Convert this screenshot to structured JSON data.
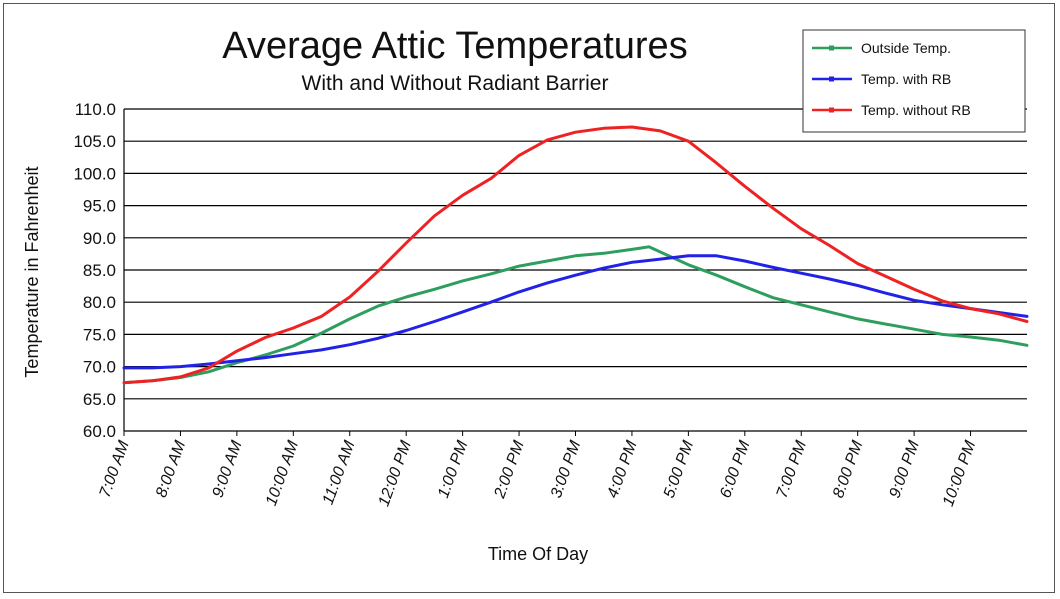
{
  "chart_data": {
    "type": "line",
    "title": "Average Attic Temperatures",
    "subtitle": "With and Without Radiant Barrier",
    "xlabel": "Time Of Day",
    "ylabel": "Temperature in Fahrenheit",
    "ylim": [
      60,
      110
    ],
    "yticks": [
      "60.0",
      "65.0",
      "70.0",
      "75.0",
      "80.0",
      "85.0",
      "90.0",
      "95.0",
      "100.0",
      "105.0",
      "110.0"
    ],
    "xlim": [
      7,
      23
    ],
    "xticks": [
      {
        "label": "7:00 AM",
        "x": 7
      },
      {
        "label": "8:00 AM",
        "x": 8
      },
      {
        "label": "9:00 AM",
        "x": 9
      },
      {
        "label": "10:00 AM",
        "x": 10
      },
      {
        "label": "11:00 AM",
        "x": 11
      },
      {
        "label": "12:00 PM",
        "x": 12
      },
      {
        "label": "1:00 PM",
        "x": 13
      },
      {
        "label": "2:00 PM",
        "x": 14
      },
      {
        "label": "3:00 PM",
        "x": 15
      },
      {
        "label": "4:00 PM",
        "x": 16
      },
      {
        "label": "5:00 PM",
        "x": 17
      },
      {
        "label": "6:00 PM",
        "x": 18
      },
      {
        "label": "7:00 PM",
        "x": 19
      },
      {
        "label": "8:00 PM",
        "x": 20
      },
      {
        "label": "9:00 PM",
        "x": 21
      },
      {
        "label": "10:00 PM",
        "x": 22
      }
    ],
    "grid": "horizontal",
    "legend_position": "top-right",
    "series": [
      {
        "name": "Outside Temp.",
        "color": "#2e9e5e",
        "x": [
          7,
          7.5,
          8,
          8.5,
          9,
          9.5,
          10,
          10.5,
          11,
          11.5,
          12,
          12.5,
          13,
          13.5,
          14,
          14.5,
          15,
          15.5,
          16,
          16.3,
          16.6,
          17,
          17.5,
          18,
          18.5,
          19,
          19.5,
          20,
          20.5,
          21,
          21.5,
          22,
          22.5,
          23
        ],
        "y": [
          67.5,
          67.8,
          68.3,
          69.2,
          70.6,
          71.8,
          73.2,
          75.2,
          77.4,
          79.4,
          80.8,
          82.0,
          83.3,
          84.4,
          85.6,
          86.4,
          87.2,
          87.6,
          88.2,
          88.6,
          87.4,
          85.8,
          84.2,
          82.4,
          80.7,
          79.6,
          78.5,
          77.4,
          76.6,
          75.8,
          75.0,
          74.6,
          74.1,
          73.3
        ]
      },
      {
        "name": "Temp. with RB",
        "color": "#2222e6",
        "x": [
          7,
          7.5,
          8,
          8.5,
          9,
          9.5,
          10,
          10.5,
          11,
          11.5,
          12,
          12.5,
          13,
          13.5,
          14,
          14.5,
          15,
          15.5,
          16,
          16.5,
          17,
          17.5,
          18,
          18.5,
          19,
          19.5,
          20,
          20.5,
          21,
          21.5,
          22,
          22.5,
          23
        ],
        "y": [
          69.8,
          69.8,
          70.0,
          70.4,
          70.9,
          71.4,
          72.0,
          72.6,
          73.4,
          74.4,
          75.6,
          77.0,
          78.5,
          80.0,
          81.6,
          83.0,
          84.2,
          85.3,
          86.2,
          86.7,
          87.2,
          87.2,
          86.4,
          85.4,
          84.5,
          83.6,
          82.6,
          81.4,
          80.3,
          79.6,
          79.0,
          78.4,
          77.8
        ]
      },
      {
        "name": "Temp. without RB",
        "color": "#ee2222",
        "x": [
          7,
          7.5,
          8,
          8.5,
          9,
          9.5,
          10,
          10.5,
          11,
          11.5,
          12,
          12.5,
          13,
          13.5,
          14,
          14.5,
          15,
          15.5,
          16,
          16.5,
          17,
          17.5,
          18,
          18.5,
          19,
          19.5,
          20,
          20.5,
          21,
          21.5,
          22,
          22.5,
          23
        ],
        "y": [
          67.5,
          67.8,
          68.4,
          69.8,
          72.4,
          74.5,
          76.0,
          77.8,
          80.8,
          84.8,
          89.2,
          93.4,
          96.6,
          99.2,
          102.8,
          105.2,
          106.4,
          107.0,
          107.2,
          106.6,
          105.0,
          101.6,
          98.0,
          94.6,
          91.4,
          88.8,
          86.0,
          84.0,
          82.0,
          80.2,
          79.0,
          78.2,
          77.0
        ]
      }
    ]
  }
}
